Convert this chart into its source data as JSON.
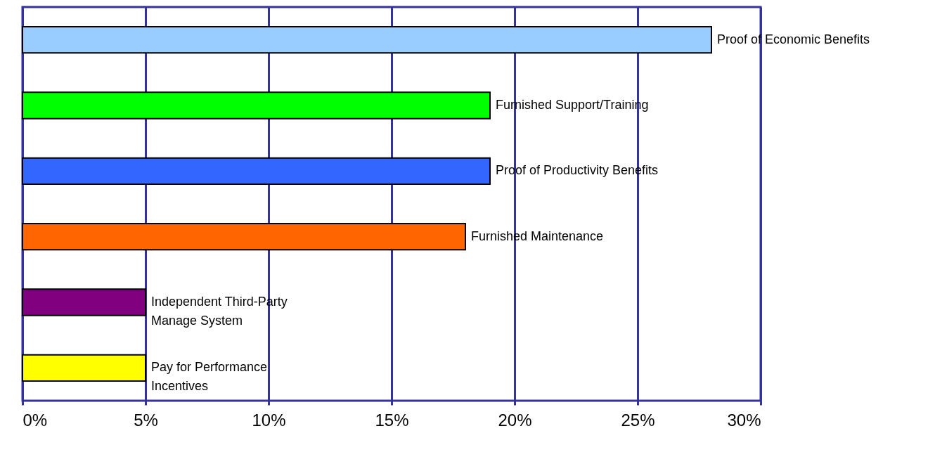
{
  "chart_data": {
    "type": "bar",
    "orientation": "horizontal",
    "categories": [
      "Proof of Economic Benefits",
      "Furnished Support/Training",
      "Proof of Productivity Benefits",
      "Furnished Maintenance",
      "Independent Third-Party\nManage System",
      "Pay for Performance\nIncentives"
    ],
    "values": [
      28,
      19,
      19,
      18,
      5,
      5
    ],
    "colors": [
      "#99ccff",
      "#00ff00",
      "#3366ff",
      "#ff6600",
      "#800080",
      "#ffff00"
    ],
    "xlim": [
      0,
      30
    ],
    "xticks": [
      {
        "value": 0,
        "label": "0%"
      },
      {
        "value": 5,
        "label": "5%"
      },
      {
        "value": 10,
        "label": "10%"
      },
      {
        "value": 15,
        "label": "15%"
      },
      {
        "value": 20,
        "label": "20%"
      },
      {
        "value": 25,
        "label": "25%"
      },
      {
        "value": 30,
        "label": "30%"
      }
    ],
    "grid": "x",
    "tick_labels": "x"
  }
}
